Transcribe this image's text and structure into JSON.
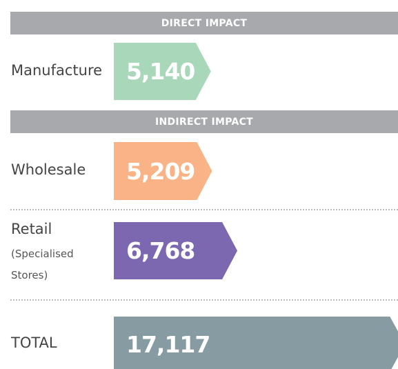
{
  "chart_data": {
    "type": "arrow-bar",
    "section_headers": [
      "DIRECT IMPACT",
      "INDIRECT IMPACT"
    ],
    "categories": [
      "Manufacture",
      "Wholesale",
      "Retail",
      "TOTAL"
    ],
    "category_notes": [
      null,
      null,
      "(Specialised Stores)",
      null
    ],
    "values": [
      5140,
      5209,
      6768,
      17117
    ],
    "value_labels": [
      "5,140",
      "5,209",
      "6,768",
      "17,117"
    ],
    "colors": [
      "#a8d8b9",
      "#f9b386",
      "#7b68b0",
      "#879ba2"
    ],
    "header_color": "#a7a9ac"
  }
}
